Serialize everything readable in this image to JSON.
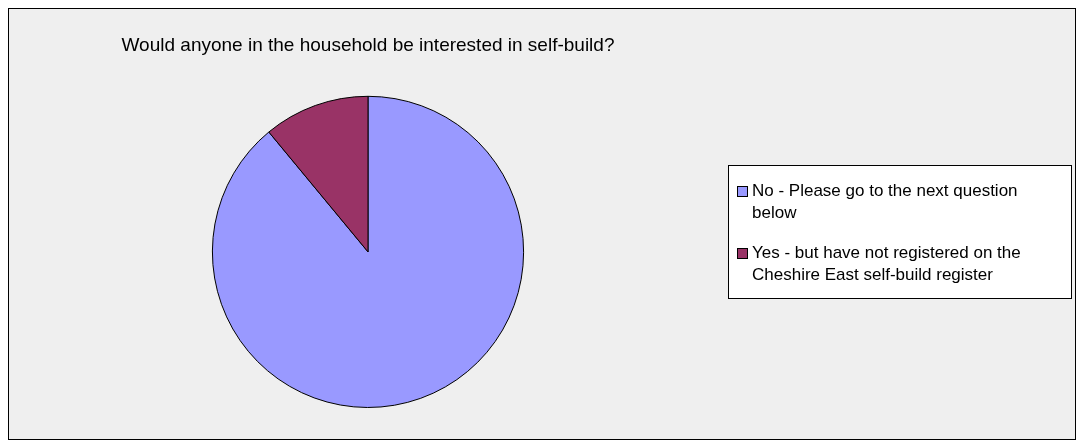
{
  "chart_data": {
    "type": "pie",
    "title": "Would anyone in the household be interested in self-build?",
    "categories": [
      "No - Please go to the next question below",
      "Yes - but have not registered on the Cheshire East self-build register"
    ],
    "values": [
      89,
      11
    ],
    "colors": [
      "#9999ff",
      "#993366"
    ],
    "legend": "right"
  }
}
